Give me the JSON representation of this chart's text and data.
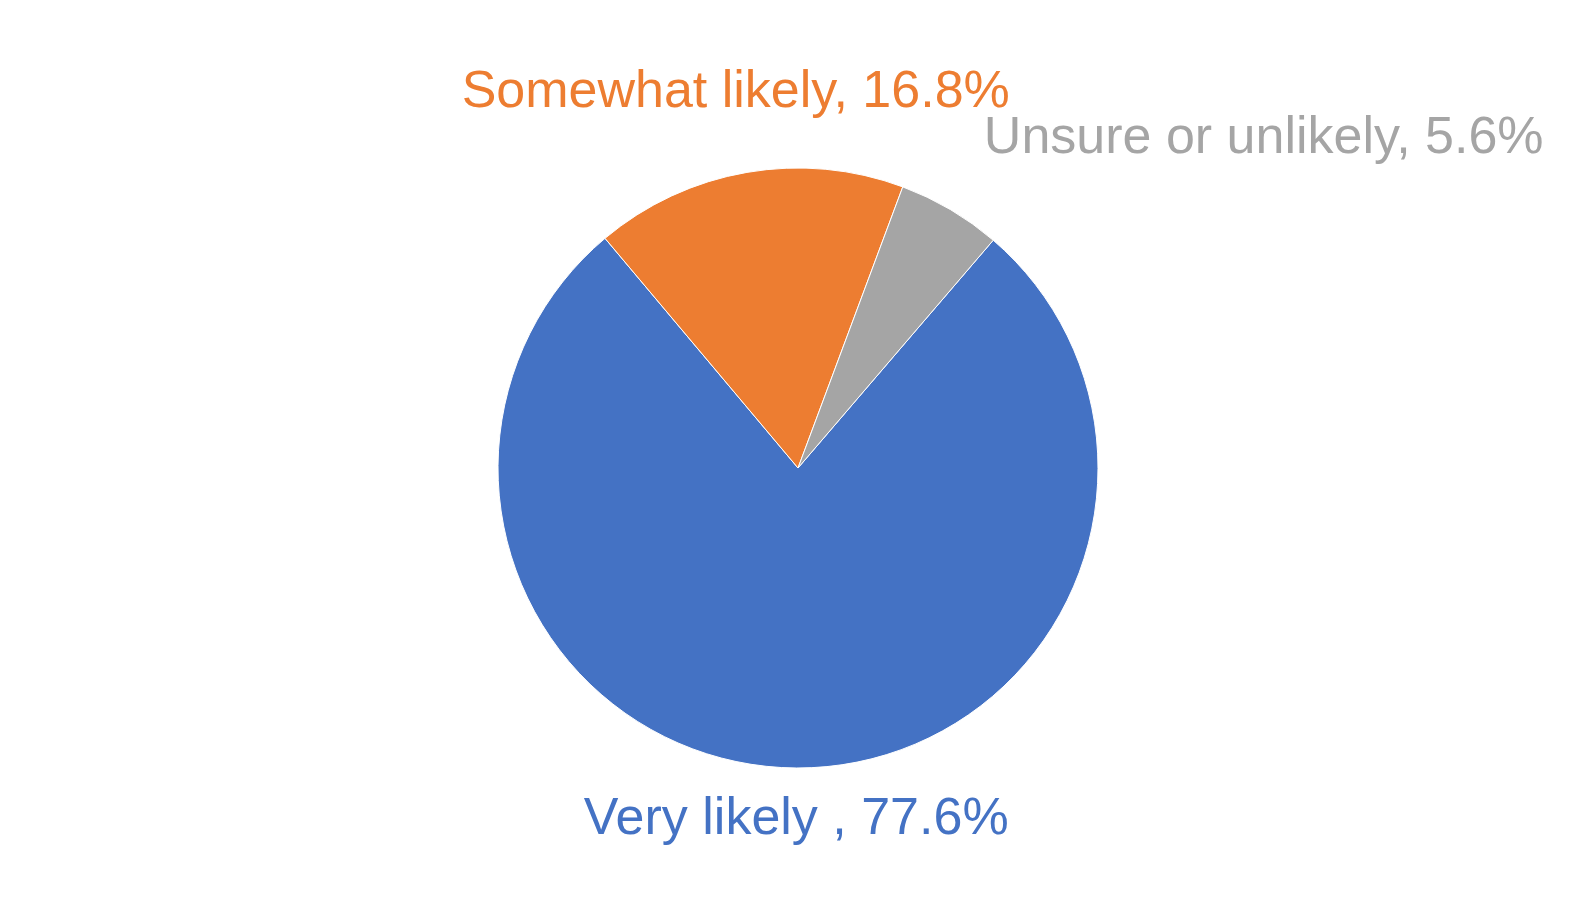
{
  "chart_data": {
    "type": "pie",
    "categories": [
      "Very likely ",
      "Somewhat likely",
      "Unsure or unlikely"
    ],
    "values": [
      77.6,
      16.8,
      5.6
    ],
    "value_labels": [
      "77.6%",
      "16.8%",
      "5.6%"
    ],
    "colors": [
      "#4472c4",
      "#ed7d31",
      "#a5a5a5"
    ],
    "legend": false
  }
}
